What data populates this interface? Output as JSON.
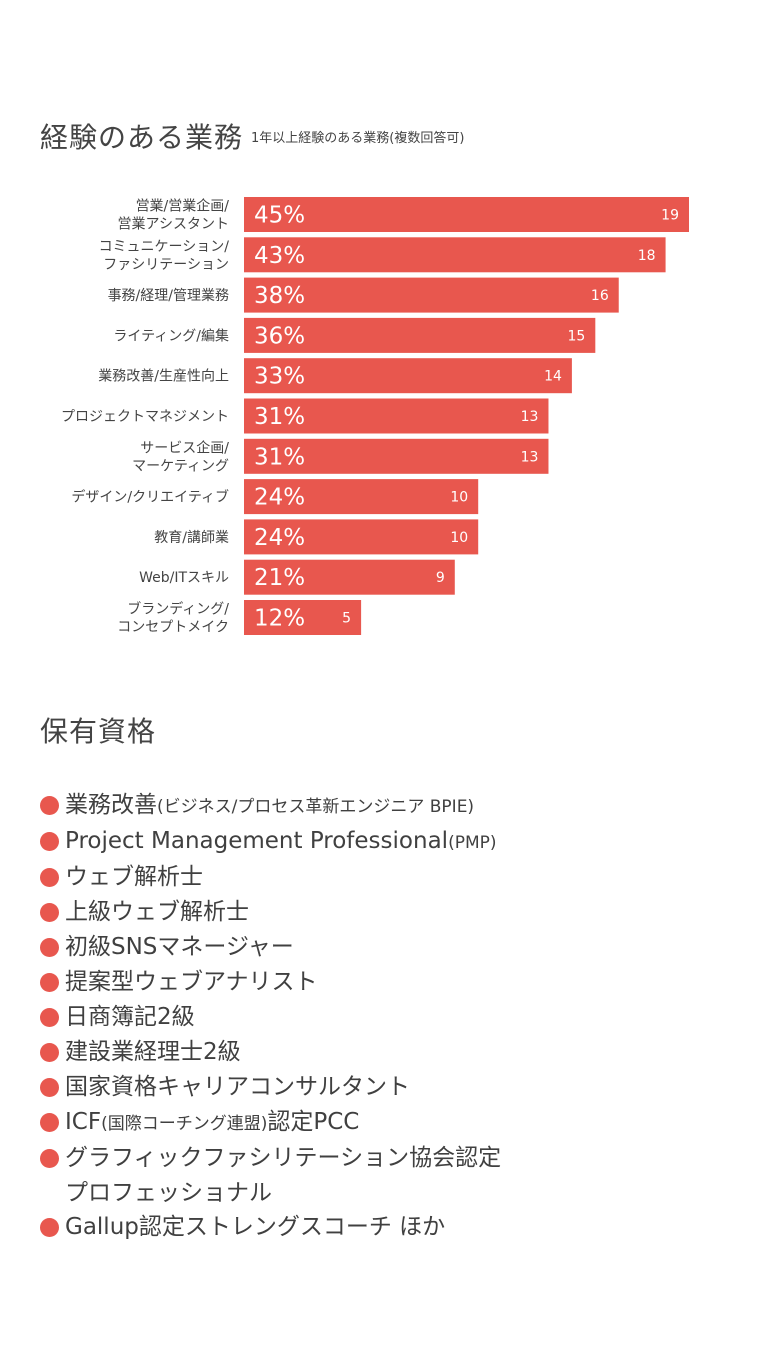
{
  "experience": {
    "title": "経験のある業務",
    "subtitle": "1年以上経験のある業務(複数回答可)"
  },
  "chart_data": {
    "type": "bar",
    "orientation": "horizontal",
    "title": "経験のある業務",
    "subtitle": "1年以上経験のある業務(複数回答可)",
    "bar_color": "#e8574e",
    "categories": [
      [
        "営業/営業企画/",
        "営業アシスタント"
      ],
      [
        "コミュニケーション/",
        "ファシリテーション"
      ],
      [
        "事務/経理/管理業務"
      ],
      [
        "ライティング/編集"
      ],
      [
        "業務改善/生産性向上"
      ],
      [
        "プロジェクトマネジメント"
      ],
      [
        "サービス企画/",
        "マーケティング"
      ],
      [
        "デザイン/クリエイティブ"
      ],
      [
        "教育/講師業"
      ],
      [
        "Web/ITスキル"
      ],
      [
        "ブランディング/",
        "コンセプトメイク"
      ]
    ],
    "percents": [
      "45%",
      "43%",
      "38%",
      "36%",
      "33%",
      "31%",
      "31%",
      "24%",
      "24%",
      "21%",
      "12%"
    ],
    "values": [
      19,
      18,
      16,
      15,
      14,
      13,
      13,
      10,
      10,
      9,
      5
    ],
    "xlim": [
      0,
      19
    ],
    "grid": false,
    "legend": "none"
  },
  "qualifications": {
    "title": "保有資格",
    "accent_color": "#e8574e",
    "items": [
      {
        "main": "業務改善",
        "paren": "(ビジネス/プロセス革新エンジニア BPIE)"
      },
      {
        "main": "Project Management Professional",
        "paren": "(PMP)"
      },
      {
        "main": "ウェブ解析士"
      },
      {
        "main": "上級ウェブ解析士"
      },
      {
        "main": "初級SNSマネージャー"
      },
      {
        "main": "提案型ウェブアナリスト"
      },
      {
        "main": "日商簿記2級"
      },
      {
        "main": "建設業経理士2級"
      },
      {
        "main": "国家資格キャリアコンサルタント"
      },
      {
        "main": "ICF",
        "paren": "(国際コーチング連盟)",
        "tail": "認定PCC"
      },
      {
        "main": "グラフィックファシリテーション協会認定",
        "line2": "プロフェッショナル"
      },
      {
        "main": "Gallup認定ストレングスコーチ ほか"
      }
    ]
  }
}
